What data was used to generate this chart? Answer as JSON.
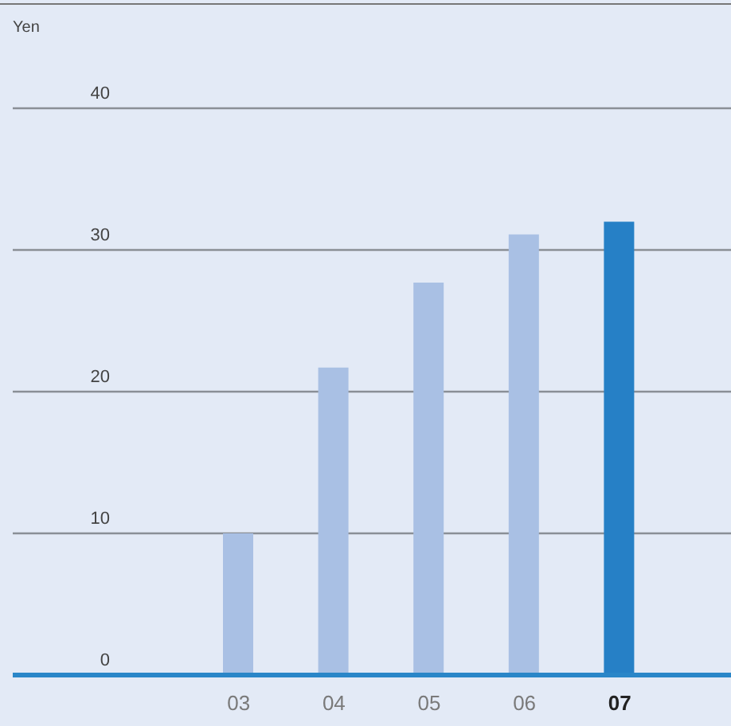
{
  "chart_data": {
    "type": "bar",
    "ylabel": "Yen",
    "categories": [
      "03",
      "04",
      "05",
      "06",
      "07"
    ],
    "values": [
      10.0,
      21.7,
      27.7,
      31.1,
      32.0
    ],
    "colors": [
      "#a9c0e4",
      "#a9c0e4",
      "#a9c0e4",
      "#a9c0e4",
      "#2680c6"
    ],
    "ylim": [
      0,
      40
    ],
    "yticks": [
      0,
      10,
      20,
      30,
      40
    ],
    "grid": "y"
  }
}
